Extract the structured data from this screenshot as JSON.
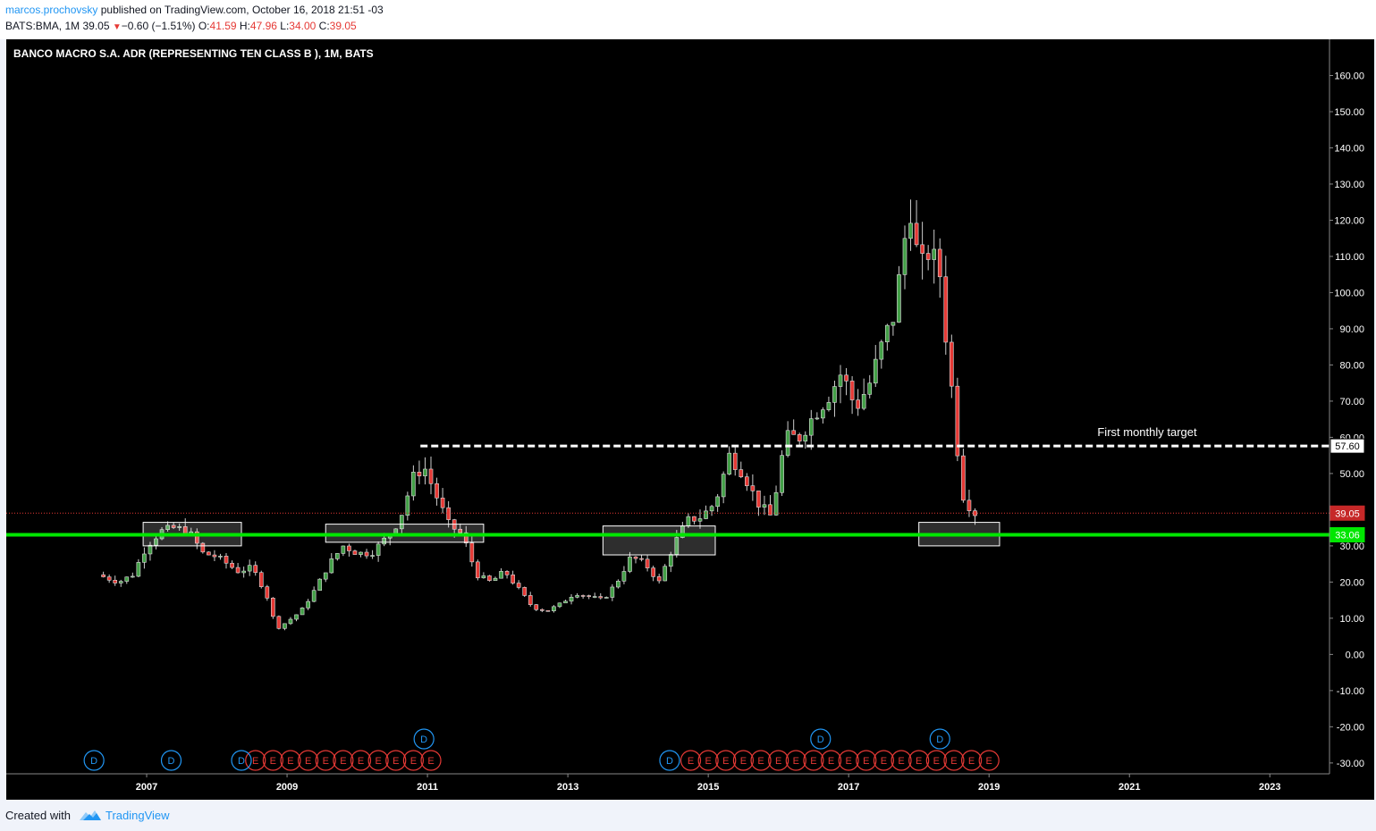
{
  "header": {
    "author": "marcos.prochovsky",
    "published": "published on TradingView.com, October 16, 2018 21:51 -03",
    "symbol": "BATS:BMA, 1M",
    "last": "39.05",
    "change": "−0.60 (−1.51%)",
    "o_label": "O:",
    "o_value": "41.59",
    "h_label": "H:",
    "h_value": "47.96",
    "l_label": "L:",
    "l_value": "34.00",
    "c_label": "C:",
    "c_value": "39.05"
  },
  "footer": {
    "created_with": "Created with",
    "brand": "TradingView"
  },
  "colors": {
    "background": "#000000",
    "up": "#26a69a",
    "up_fill": "#43a047",
    "down": "#e53935",
    "support_line": "#00e600",
    "target_line": "#ffffff",
    "dividend_badge": "#2196f3",
    "earnings_badge": "#e53935"
  },
  "chart_data": {
    "type": "candlestick",
    "title": "BANCO MACRO S.A. ADR (REPRESENTING TEN CLASS B ), 1M, BATS",
    "y_ticks": [
      "160.00",
      "150.00",
      "140.00",
      "130.00",
      "120.00",
      "110.00",
      "100.00",
      "90.00",
      "80.00",
      "70.00",
      "60.00",
      "50.00",
      "40.00",
      "30.00",
      "20.00",
      "10.00",
      "0.00",
      "-10.00",
      "-20.00",
      "-30.00"
    ],
    "ylim": [
      -33,
      170
    ],
    "x_ticks": [
      "2007",
      "2009",
      "2011",
      "2013",
      "2015",
      "2017",
      "2019",
      "2021",
      "2023"
    ],
    "xlim": [
      2005.0,
      2023.85
    ],
    "current_price": "39.05",
    "support_price": "33.06",
    "target_price": "57.60",
    "target_label": "First monthly target",
    "closes": [
      [
        2006.3,
        22
      ],
      [
        2006.6,
        20
      ],
      [
        2006.8,
        22
      ],
      [
        2007.0,
        30
      ],
      [
        2007.2,
        34
      ],
      [
        2007.4,
        35
      ],
      [
        2007.6,
        34
      ],
      [
        2007.8,
        28
      ],
      [
        2008.0,
        27
      ],
      [
        2008.3,
        23
      ],
      [
        2008.5,
        24
      ],
      [
        2008.7,
        17
      ],
      [
        2008.85,
        7
      ],
      [
        2009.0,
        9
      ],
      [
        2009.2,
        12
      ],
      [
        2009.4,
        18
      ],
      [
        2009.6,
        25
      ],
      [
        2009.8,
        30
      ],
      [
        2010.0,
        28
      ],
      [
        2010.2,
        28
      ],
      [
        2010.4,
        32
      ],
      [
        2010.6,
        37
      ],
      [
        2010.8,
        49
      ],
      [
        2010.95,
        52
      ],
      [
        2011.1,
        45
      ],
      [
        2011.3,
        36
      ],
      [
        2011.5,
        33
      ],
      [
        2011.7,
        22
      ],
      [
        2011.9,
        20
      ],
      [
        2012.1,
        23
      ],
      [
        2012.3,
        18
      ],
      [
        2012.5,
        13
      ],
      [
        2012.7,
        12
      ],
      [
        2012.9,
        14
      ],
      [
        2013.1,
        17
      ],
      [
        2013.3,
        16
      ],
      [
        2013.5,
        15
      ],
      [
        2013.7,
        20
      ],
      [
        2013.9,
        27
      ],
      [
        2014.1,
        25
      ],
      [
        2014.3,
        20
      ],
      [
        2014.5,
        30
      ],
      [
        2014.7,
        37
      ],
      [
        2014.9,
        38
      ],
      [
        2015.1,
        42
      ],
      [
        2015.3,
        55
      ],
      [
        2015.5,
        50
      ],
      [
        2015.7,
        42
      ],
      [
        2015.9,
        38
      ],
      [
        2016.1,
        60
      ],
      [
        2016.3,
        60
      ],
      [
        2016.5,
        66
      ],
      [
        2016.7,
        71
      ],
      [
        2016.9,
        78
      ],
      [
        2017.1,
        68
      ],
      [
        2017.3,
        75
      ],
      [
        2017.5,
        87
      ],
      [
        2017.65,
        94
      ],
      [
        2017.8,
        115
      ],
      [
        2017.9,
        125
      ],
      [
        2018.0,
        105
      ],
      [
        2018.15,
        112
      ],
      [
        2018.3,
        105
      ],
      [
        2018.4,
        85
      ],
      [
        2018.5,
        68
      ],
      [
        2018.6,
        45
      ],
      [
        2018.7,
        41.6
      ],
      [
        2018.79,
        39.05
      ]
    ],
    "boxes": [
      {
        "x": [
          2006.95,
          2008.35
        ],
        "y": [
          30,
          36.5
        ]
      },
      {
        "x": [
          2009.55,
          2011.8
        ],
        "y": [
          31,
          36
        ]
      },
      {
        "x": [
          2013.5,
          2015.1
        ],
        "y": [
          27.5,
          35.5
        ]
      },
      {
        "x": [
          2018.0,
          2019.15
        ],
        "y": [
          30,
          36.5
        ]
      }
    ],
    "events": {
      "dividends": [
        2006.25,
        2007.35,
        2008.35,
        2010.95,
        2014.45,
        2016.6,
        2018.3
      ],
      "dividends_raised": [
        2010.95,
        2016.6,
        2018.3
      ],
      "dividend_letter": "D",
      "earnings_letter": "E"
    }
  }
}
